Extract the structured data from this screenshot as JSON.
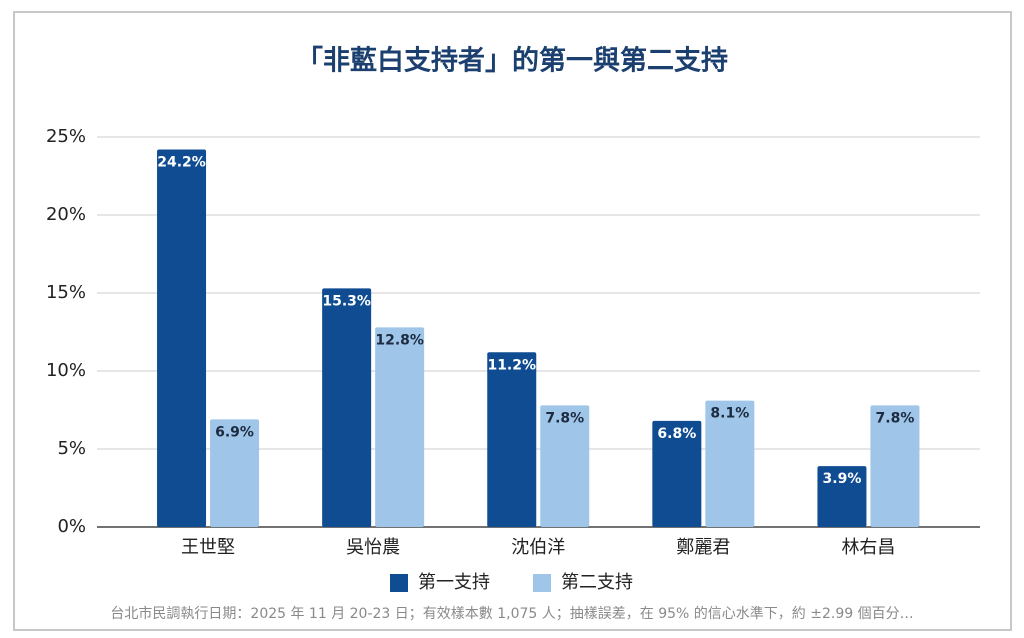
{
  "chart_data": {
    "type": "bar",
    "title": "「非藍白支持者」的第一與第二支持",
    "categories": [
      "王世堅",
      "吳怡農",
      "沈伯洋",
      "鄭麗君",
      "林右昌"
    ],
    "series": [
      {
        "name": "第一支持",
        "color": "#0f4c92",
        "values": [
          24.2,
          15.3,
          11.2,
          6.8,
          3.9
        ],
        "value_labels": [
          "24.2%",
          "15.3%",
          "11.2%",
          "6.8%",
          "3.9%"
        ]
      },
      {
        "name": "第二支持",
        "color": "#9fc5e8",
        "values": [
          6.9,
          12.8,
          7.8,
          8.1,
          7.8
        ],
        "value_labels": [
          "6.9%",
          "12.8%",
          "7.8%",
          "8.1%",
          "7.8%"
        ]
      }
    ],
    "ylim": [
      0,
      25
    ],
    "yticks": [
      {
        "value": 0,
        "label": "0%"
      },
      {
        "value": 5,
        "label": "5%"
      },
      {
        "value": 10,
        "label": "10%"
      },
      {
        "value": 15,
        "label": "15%"
      },
      {
        "value": 20,
        "label": "20%"
      },
      {
        "value": 25,
        "label": "25%"
      }
    ],
    "grid": true,
    "legend": "bottom",
    "footnote": "台北市民調執行日期：2025 年 11 月 20-23 日；有效樣本數 1,075 人；抽樣誤差，在 95% 的信心水準下，約 ±2.99 個百分…"
  }
}
